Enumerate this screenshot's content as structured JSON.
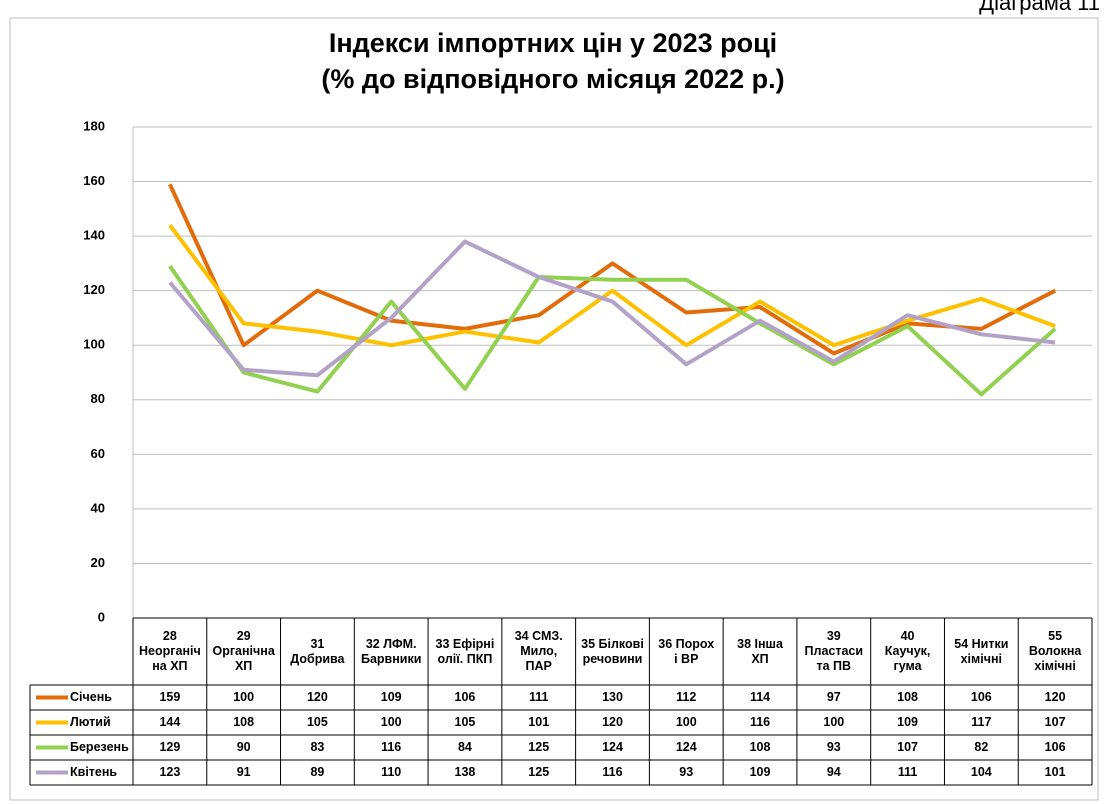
{
  "note": "Діаграма 11",
  "chart_data": {
    "type": "line",
    "title": "Індекси імпортних цін у 2023 році",
    "subtitle": "(% до відповідного місяця 2022 р.)",
    "categories": [
      "28\nНеорганіч\nна ХП",
      "29\nОрганічна\nХП",
      "31\nДобрива",
      "32 ЛФМ.\nБарвники",
      "33 Ефірні\nолії. ПКП",
      "34  СМЗ.\nМило,\nПАР",
      "35 Білкові\nречовини",
      "36 Порох\nі ВР",
      "38  Інша\nХП",
      "39\nПластаси\nта ПВ",
      "40\nКаучук,\nгума",
      "54 Нитки\nхімічні",
      "55\nВолокна\nхімічні"
    ],
    "series": [
      {
        "name": "Січень",
        "color": "#e36c0a",
        "values": [
          159,
          100,
          120,
          109,
          106,
          111,
          130,
          112,
          114,
          97,
          108,
          106,
          120
        ]
      },
      {
        "name": "Лютий",
        "color": "#ffc000",
        "values": [
          144,
          108,
          105,
          100,
          105,
          101,
          120,
          100,
          116,
          100,
          109,
          117,
          107
        ]
      },
      {
        "name": "Березень",
        "color": "#92d050",
        "values": [
          129,
          90,
          83,
          116,
          84,
          125,
          124,
          124,
          108,
          93,
          107,
          82,
          106
        ]
      },
      {
        "name": "Квітень",
        "color": "#b3a2c7",
        "values": [
          123,
          91,
          89,
          110,
          138,
          125,
          116,
          93,
          109,
          94,
          111,
          104,
          101
        ]
      }
    ],
    "ylim": [
      0,
      180
    ],
    "yticks": [
      0,
      20,
      40,
      60,
      80,
      100,
      120,
      140,
      160,
      180
    ],
    "grid": true
  }
}
